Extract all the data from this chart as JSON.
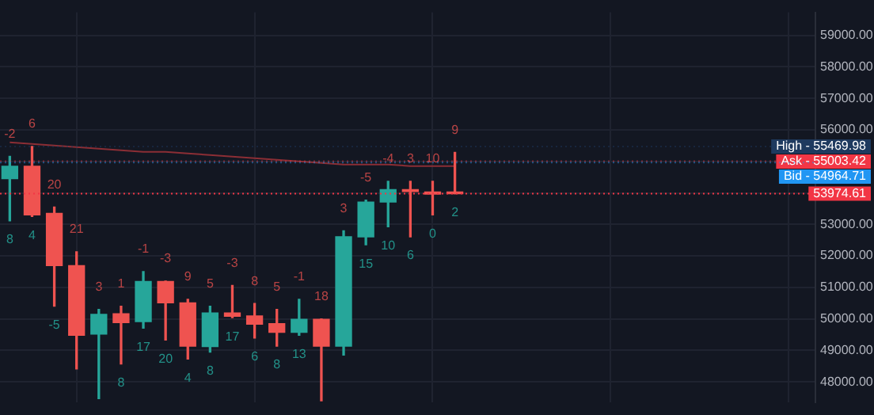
{
  "chart_data": {
    "type": "candlestick",
    "categories": [
      null,
      null,
      null,
      null,
      null,
      null,
      null,
      null,
      null,
      null,
      null,
      null,
      null,
      null,
      null,
      null,
      null,
      null,
      null,
      null,
      null
    ],
    "ohlc": [
      [
        54450,
        55160,
        53110,
        54845
      ],
      [
        54845,
        55475,
        53250,
        53300
      ],
      [
        53346,
        53550,
        50400,
        51690
      ],
      [
        51690,
        52130,
        48410,
        49480
      ],
      [
        49515,
        50300,
        47465,
        50145
      ],
      [
        50160,
        50400,
        48570,
        49880
      ],
      [
        49910,
        51500,
        49705,
        51185
      ],
      [
        51185,
        51200,
        49325,
        50510
      ],
      [
        50510,
        50620,
        48725,
        49135
      ],
      [
        49120,
        50400,
        48945,
        50190
      ],
      [
        50190,
        51060,
        50035,
        50080
      ],
      [
        50095,
        50490,
        49390,
        49830
      ],
      [
        49845,
        50300,
        49135,
        49575
      ],
      [
        49575,
        50620,
        49480,
        49985
      ],
      [
        49985,
        50000,
        47400,
        49135
      ],
      [
        49135,
        52795,
        48850,
        52605
      ],
      [
        52605,
        53770,
        52350,
        53710
      ],
      [
        53710,
        54370,
        52920,
        54105
      ],
      [
        54105,
        54370,
        52605,
        54040
      ],
      [
        54025,
        54370,
        53300,
        53960
      ],
      [
        54010,
        55286,
        53975,
        53975
      ]
    ],
    "colors": [
      "#26a69a",
      "#ef5350",
      "#ef5350",
      "#ef5350",
      "#26a69a",
      "#ef5350",
      "#26a69a",
      "#ef5350",
      "#ef5350",
      "#26a69a",
      "#ef5350",
      "#ef5350",
      "#ef5350",
      "#26a69a",
      "#ef5350",
      "#26a69a",
      "#26a69a",
      "#26a69a",
      "#ef5350",
      "#ef5350",
      "#ef5350"
    ],
    "series": [
      {
        "type": "line",
        "color": "#8b2e35",
        "values": [
          55600,
          55550,
          55500,
          55450,
          55400,
          55350,
          55300,
          55300,
          55250,
          55200,
          55150,
          55100,
          55050,
          55000,
          54950,
          54900,
          54900,
          54900,
          54850,
          54850,
          54850
        ]
      }
    ],
    "annotations": [
      "-2",
      "6",
      "20",
      "21",
      "3",
      "1",
      "-1",
      "-3",
      "9",
      "5",
      "-3",
      "8",
      "5",
      "-1",
      "18",
      "3",
      "-5",
      "-4",
      "3",
      "10",
      "9",
      "8",
      "4",
      "-5",
      "8",
      "17",
      "20",
      "4",
      "8",
      "17",
      "6",
      "8",
      "13",
      "15",
      "10",
      "6",
      "0",
      "2"
    ],
    "ylim": [
      47340,
      59730
    ],
    "yticks": [
      {
        "value": 48000,
        "label": "48000.00"
      },
      {
        "value": 49000,
        "label": "49000.00"
      },
      {
        "value": 50000,
        "label": "50000.00"
      },
      {
        "value": 51000,
        "label": "51000.00"
      },
      {
        "value": 52000,
        "label": "52000.00"
      },
      {
        "value": 53000,
        "label": "53000.00"
      },
      {
        "value": 54000,
        "label": null
      },
      {
        "value": 55000,
        "label": null
      },
      {
        "value": 56000,
        "label": "56000.00"
      },
      {
        "value": 57000,
        "label": "57000.00"
      },
      {
        "value": 58000,
        "label": "58000.00"
      },
      {
        "value": 59000,
        "label": "59000.00"
      }
    ],
    "tick_labels": "y",
    "grid": true,
    "legend": false,
    "ref_lines": [
      {
        "axis": "y",
        "value": 55469.98,
        "label": "High - 55469.98",
        "color": "#1e3a5f",
        "line_style": "dotted"
      },
      {
        "axis": "y",
        "value": 55003.42,
        "label": "Ask - 55003.42",
        "color": "#f23645",
        "line_style": "dotted"
      },
      {
        "axis": "y",
        "value": 54964.71,
        "label": "Bid - 54964.71",
        "color": "#2196f3",
        "line_style": "dotted"
      },
      {
        "axis": "y",
        "value": 53974.61,
        "label": "53974.61",
        "color": "#f23645",
        "line_style": "dotted"
      }
    ]
  }
}
